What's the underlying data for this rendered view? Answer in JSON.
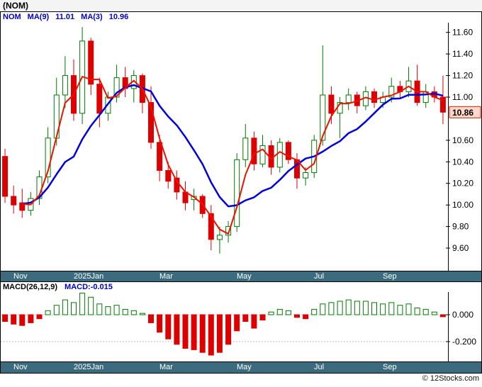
{
  "title": "(NOM)",
  "legend": {
    "symbol": "NOM",
    "ma9_label": "MA(9)",
    "ma9_value": "11.01",
    "ma3_label": "MA(3)",
    "ma3_value": "10.96"
  },
  "macd_panel": {
    "label": "MACD(26,12,9)",
    "value": "MACD:-0.015"
  },
  "footer": {
    "copyright": "© 12Stocks.com"
  },
  "colors": {
    "up": "#007a00",
    "down": "#dd0000",
    "ma9_line": "#0000dd",
    "ma3_line": "#ee1100",
    "legend_text": "#0000cc",
    "axis_bar_bg": "#3b6c7e",
    "axis_label_text": "#ffffff",
    "price_box_bg": "#ffd8cc",
    "price_box_border": "#cc2200",
    "price_box_text": "#aa0000"
  },
  "chart_data": [
    {
      "type": "candlestick",
      "title": "NOM weekly candlestick chart with MA(9) and MA(3) overlays",
      "ohlc": [
        [
          10.45,
          10.52,
          10.02,
          10.08
        ],
        [
          10.08,
          10.18,
          9.92,
          10.0
        ],
        [
          10.02,
          10.15,
          9.88,
          9.95
        ],
        [
          9.95,
          10.12,
          9.9,
          10.06
        ],
        [
          10.06,
          10.32,
          10.0,
          10.26
        ],
        [
          10.26,
          10.72,
          10.2,
          10.62
        ],
        [
          10.62,
          11.18,
          10.55,
          11.02
        ],
        [
          11.02,
          11.38,
          10.9,
          11.2
        ],
        [
          11.2,
          11.35,
          10.78,
          10.85
        ],
        [
          10.85,
          11.65,
          10.75,
          11.52
        ],
        [
          11.52,
          11.55,
          11.02,
          11.12
        ],
        [
          11.12,
          11.18,
          10.72,
          10.85
        ],
        [
          10.85,
          11.05,
          10.78,
          11.0
        ],
        [
          11.0,
          11.3,
          10.95,
          11.18
        ],
        [
          11.18,
          11.28,
          11.0,
          11.08
        ],
        [
          11.08,
          11.25,
          10.95,
          11.2
        ],
        [
          11.2,
          11.22,
          10.85,
          10.95
        ],
        [
          10.95,
          11.1,
          10.52,
          10.58
        ],
        [
          10.58,
          10.65,
          10.22,
          10.32
        ],
        [
          10.32,
          10.4,
          10.15,
          10.22
        ],
        [
          10.25,
          10.32,
          10.05,
          10.12
        ],
        [
          10.12,
          10.22,
          9.95,
          10.02
        ],
        [
          10.05,
          10.15,
          9.95,
          10.08
        ],
        [
          10.08,
          10.1,
          9.88,
          9.92
        ],
        [
          9.92,
          10.0,
          9.58,
          9.68
        ],
        [
          9.68,
          9.8,
          9.55,
          9.72
        ],
        [
          9.72,
          9.85,
          9.65,
          9.8
        ],
        [
          9.8,
          10.48,
          9.75,
          10.42
        ],
        [
          10.42,
          10.75,
          10.35,
          10.62
        ],
        [
          10.62,
          10.68,
          10.32,
          10.38
        ],
        [
          10.38,
          10.65,
          10.35,
          10.55
        ],
        [
          10.55,
          10.6,
          10.28,
          10.35
        ],
        [
          10.35,
          10.62,
          10.3,
          10.58
        ],
        [
          10.58,
          10.6,
          10.38,
          10.42
        ],
        [
          10.42,
          10.48,
          10.15,
          10.25
        ],
        [
          10.25,
          10.35,
          10.18,
          10.3
        ],
        [
          10.3,
          10.65,
          10.25,
          10.6
        ],
        [
          10.6,
          11.48,
          10.55,
          11.02
        ],
        [
          11.02,
          11.1,
          10.75,
          10.85
        ],
        [
          10.85,
          11.0,
          10.62,
          10.95
        ],
        [
          10.95,
          11.08,
          10.88,
          11.02
        ],
        [
          11.02,
          11.05,
          10.85,
          10.92
        ],
        [
          10.92,
          11.1,
          10.88,
          11.05
        ],
        [
          11.05,
          11.08,
          10.9,
          10.95
        ],
        [
          10.95,
          11.05,
          10.9,
          11.0
        ],
        [
          11.0,
          11.18,
          10.95,
          11.1
        ],
        [
          11.1,
          11.15,
          10.98,
          11.05
        ],
        [
          11.05,
          11.28,
          11.0,
          11.15
        ],
        [
          11.15,
          11.3,
          10.92,
          10.95
        ],
        [
          10.95,
          11.12,
          10.9,
          11.05
        ],
        [
          11.05,
          11.1,
          10.95,
          11.0
        ],
        [
          11.0,
          11.2,
          10.75,
          10.86
        ]
      ],
      "last_price": 10.86,
      "last_price_label": "10.86",
      "ylim": [
        9.39,
        11.69
      ],
      "y_ticks": [
        11.6,
        11.4,
        11.2,
        11.0,
        10.6,
        10.4,
        10.2,
        10.0,
        9.8,
        9.6
      ],
      "x_ticks": [
        {
          "label": "Nov",
          "index": 1
        },
        {
          "label": "2025Jan",
          "index": 8
        },
        {
          "label": "Mar",
          "index": 18
        },
        {
          "label": "May",
          "index": 27
        },
        {
          "label": "Jul",
          "index": 36
        },
        {
          "label": "Sep",
          "index": 44
        }
      ],
      "overlays": [
        {
          "name": "MA(9)",
          "period": 9,
          "value": 11.01
        },
        {
          "name": "MA(3)",
          "period": 3,
          "value": 10.96
        }
      ]
    },
    {
      "type": "bar",
      "title": "MACD(26,12,9) histogram",
      "values": [
        -0.05,
        -0.07,
        -0.08,
        -0.06,
        -0.03,
        0.03,
        0.07,
        0.11,
        0.09,
        0.16,
        0.13,
        0.08,
        0.06,
        0.07,
        0.04,
        0.03,
        0.01,
        -0.06,
        -0.13,
        -0.18,
        -0.22,
        -0.25,
        -0.26,
        -0.28,
        -0.3,
        -0.28,
        -0.22,
        -0.12,
        -0.05,
        -0.1,
        -0.04,
        0.02,
        0.04,
        0.03,
        -0.02,
        -0.03,
        0.04,
        0.08,
        0.09,
        0.1,
        0.11,
        0.1,
        0.1,
        0.09,
        0.08,
        0.09,
        0.07,
        0.08,
        0.05,
        0.04,
        0.02,
        -0.015
      ],
      "last_value": -0.015,
      "y_ticks": [
        {
          "label": "0.000",
          "value": 0
        },
        {
          "label": "-0.200",
          "value": -0.2
        }
      ],
      "ylim": [
        -0.33,
        0.17
      ]
    }
  ]
}
